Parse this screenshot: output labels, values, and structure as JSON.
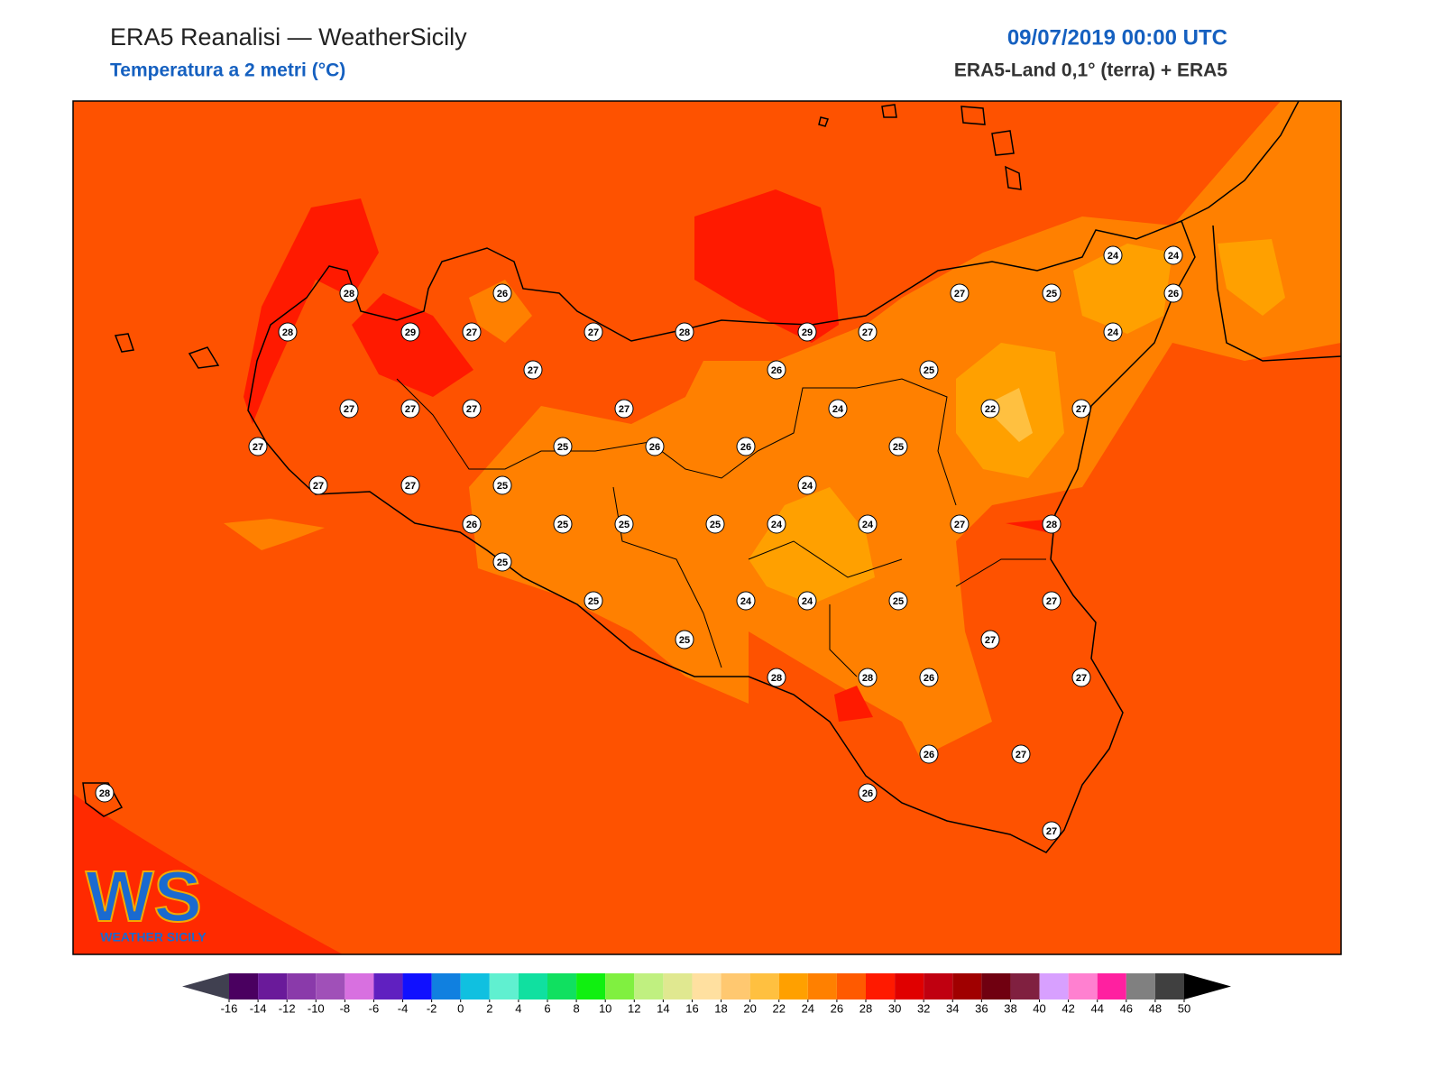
{
  "header": {
    "title": "ERA5 Reanalisi — WeatherSicily",
    "subtitle": "Temperatura a 2 metri (°C)",
    "date": "09/07/2019 00:00 UTC",
    "source": "ERA5-Land 0,1° (terra) + ERA5"
  },
  "logo": {
    "initials": "WS",
    "name": "WEATHER SICILY"
  },
  "stations": [
    28,
    26,
    28,
    29,
    27,
    27,
    28,
    27,
    26,
    29,
    27,
    27,
    25,
    24,
    24,
    26,
    24,
    25,
    22,
    27,
    27,
    27,
    27,
    27,
    24,
    27,
    25,
    26,
    26,
    25,
    27,
    27,
    25,
    24,
    26,
    25,
    25,
    25,
    24,
    24,
    27,
    28,
    25,
    25,
    24,
    24,
    25,
    27,
    27,
    25,
    28,
    28,
    26,
    27,
    26,
    27,
    26,
    27,
    28
  ],
  "colorbar": {
    "ticks": [
      -16,
      -14,
      -12,
      -10,
      -8,
      -6,
      -4,
      -2,
      0,
      2,
      4,
      6,
      8,
      10,
      12,
      14,
      16,
      18,
      20,
      22,
      24,
      26,
      28,
      30,
      32,
      34,
      36,
      38,
      40,
      42,
      44,
      46,
      48,
      50
    ],
    "colors": [
      "#4a0060",
      "#6a1a9a",
      "#8a3aaa",
      "#a050b8",
      "#d870e0",
      "#6020c0",
      "#1010ff",
      "#1080e0",
      "#10c0e0",
      "#60f0d0",
      "#10e0a0",
      "#10e060",
      "#10f010",
      "#80f040",
      "#c0f080",
      "#e0e890",
      "#ffe0a0",
      "#ffc870",
      "#ffc040",
      "#ffa000",
      "#ff8000",
      "#ff5a00",
      "#ff1a00",
      "#e00000",
      "#c00010",
      "#a00000",
      "#700010",
      "#802040",
      "#d8a0ff",
      "#ff80d0",
      "#ff20a0",
      "#808080",
      "#404040"
    ],
    "under_color": "#404050",
    "over_color": "#000000"
  }
}
